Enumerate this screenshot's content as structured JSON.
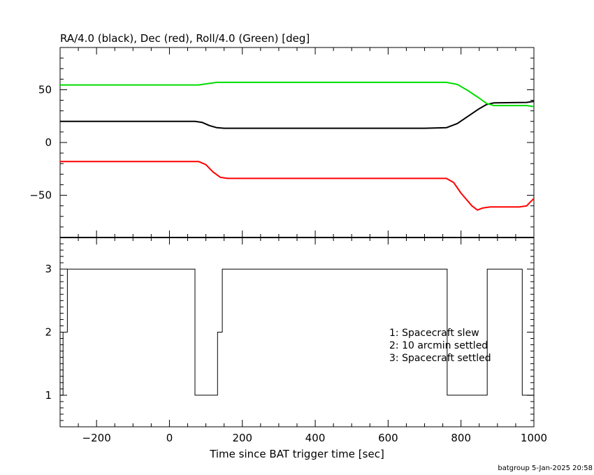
{
  "chart_data": [
    {
      "type": "line",
      "title": "RA/4.0 (black), Dec (red), Roll/4.0 (Green) [deg]",
      "xlim": [
        -300,
        1000
      ],
      "ylim": [
        -90,
        90
      ],
      "yticks": [
        -50,
        0,
        50
      ],
      "grid": false,
      "series": [
        {
          "name": "RA/4.0",
          "color": "#000000",
          "points": [
            [
              -300,
              20
            ],
            [
              70,
              20
            ],
            [
              90,
              19
            ],
            [
              110,
              16
            ],
            [
              130,
              14
            ],
            [
              150,
              13.5
            ],
            [
              700,
              13.5
            ],
            [
              760,
              14
            ],
            [
              790,
              18
            ],
            [
              820,
              25
            ],
            [
              850,
              32
            ],
            [
              870,
              36
            ],
            [
              890,
              37.5
            ],
            [
              980,
              38
            ],
            [
              1000,
              39
            ]
          ]
        },
        {
          "name": "Dec",
          "color": "#ff0000",
          "points": [
            [
              -300,
              -18
            ],
            [
              80,
              -18
            ],
            [
              100,
              -21
            ],
            [
              120,
              -28
            ],
            [
              140,
              -33
            ],
            [
              160,
              -34
            ],
            [
              760,
              -34
            ],
            [
              780,
              -38
            ],
            [
              800,
              -48
            ],
            [
              830,
              -60
            ],
            [
              845,
              -64
            ],
            [
              860,
              -62
            ],
            [
              880,
              -61
            ],
            [
              960,
              -61
            ],
            [
              980,
              -60
            ],
            [
              1000,
              -53
            ]
          ]
        },
        {
          "name": "Roll/4.0",
          "color": "#00dd00",
          "points": [
            [
              -300,
              54.5
            ],
            [
              80,
              54.5
            ],
            [
              100,
              55.5
            ],
            [
              130,
              57
            ],
            [
              760,
              57
            ],
            [
              790,
              55
            ],
            [
              820,
              49
            ],
            [
              850,
              42
            ],
            [
              870,
              37
            ],
            [
              890,
              35
            ],
            [
              980,
              35
            ],
            [
              1000,
              34
            ]
          ]
        }
      ]
    },
    {
      "type": "line",
      "xlabel": "Time since BAT trigger time [sec]",
      "xlim": [
        -300,
        1000
      ],
      "ylim": [
        0.5,
        3.5
      ],
      "xticks": [
        -200,
        0,
        200,
        400,
        600,
        800,
        1000
      ],
      "yticks": [
        1,
        2,
        3
      ],
      "grid": false,
      "series": [
        {
          "color": "#000000",
          "points": [
            [
              -300,
              1
            ],
            [
              -292,
              1
            ],
            [
              -292,
              2
            ],
            [
              -280,
              2
            ],
            [
              -280,
              3
            ],
            [
              70,
              3
            ],
            [
              70,
              1
            ],
            [
              132,
              1
            ],
            [
              132,
              2
            ],
            [
              145,
              2
            ],
            [
              145,
              3
            ],
            [
              762,
              3
            ],
            [
              762,
              1
            ],
            [
              872,
              1
            ],
            [
              872,
              3
            ],
            [
              968,
              3
            ],
            [
              968,
              1
            ],
            [
              1000,
              1
            ]
          ]
        }
      ],
      "annotations": [
        "1: Spacecraft slew",
        "2: 10 arcmin settled",
        "3: Spacecraft settled"
      ]
    }
  ],
  "footer": "batgroup  5-Jan-2025 20:58"
}
